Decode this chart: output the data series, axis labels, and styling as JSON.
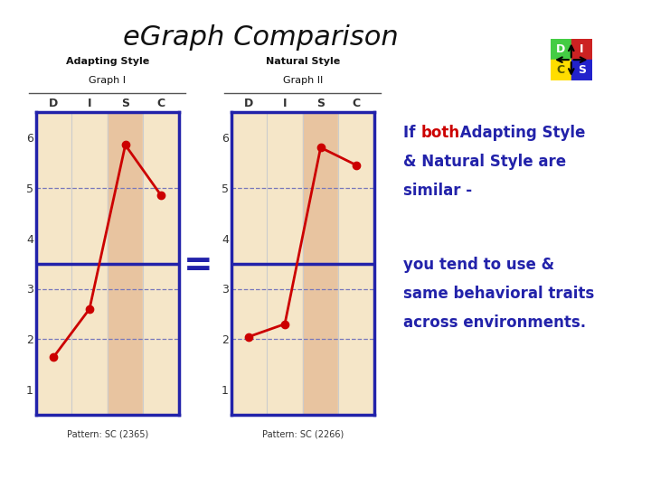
{
  "title": "eGraph Comparison",
  "title_fontsize": 22,
  "background_color": "#ffffff",
  "graph1_title_line1": "Adapting Style",
  "graph1_title_line2": "Graph I",
  "graph2_title_line1": "Natural Style",
  "graph2_title_line2": "Graph II",
  "pattern1": "Pattern: SC (2365)",
  "pattern2": "Pattern: SC (2266)",
  "columns": [
    "D",
    "I",
    "S",
    "C"
  ],
  "yticks": [
    1,
    2,
    3,
    4,
    5,
    6
  ],
  "graph1_line": [
    [
      1,
      1.65
    ],
    [
      2,
      2.6
    ],
    [
      3,
      5.85
    ],
    [
      4,
      4.85
    ]
  ],
  "graph2_line": [
    [
      1,
      2.05
    ],
    [
      2,
      2.3
    ],
    [
      3,
      5.8
    ],
    [
      4,
      5.45
    ]
  ],
  "col_colors_light": "#f5e6c8",
  "col_colors_dark": "#e8c4a0",
  "highlight_col": 2,
  "border_color": "#2222aa",
  "line_color": "#cc0000",
  "line_width": 2.0,
  "marker_size": 6,
  "text_color_blue": "#2222aa",
  "text_color_red": "#cc0000",
  "equals_color": "#2222aa",
  "grid_line_style": "--",
  "grid_color": "#7777bb",
  "divider_row": 3.5,
  "disc_d_color": "#44cc44",
  "disc_i_color": "#cc2222",
  "disc_c_color": "#ffdd00",
  "disc_s_color": "#2222cc"
}
